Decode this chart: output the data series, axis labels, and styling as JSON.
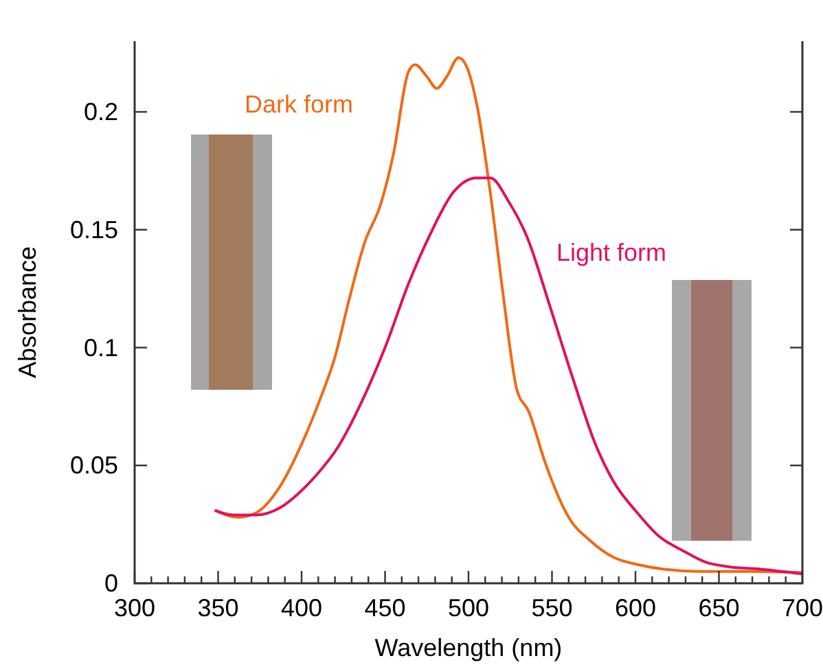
{
  "chart_data": {
    "type": "line",
    "xlabel": "Wavelength (nm)",
    "ylabel": "Absorbance",
    "xlim": [
      300,
      700
    ],
    "ylim": [
      0,
      0.23
    ],
    "xticks": [
      300,
      {
        "value": 310,
        "label": null
      },
      {
        "value": 320,
        "label": null
      },
      {
        "value": 330,
        "label": null
      },
      {
        "value": 340,
        "label": null
      },
      350,
      {
        "value": 360,
        "label": null
      },
      {
        "value": 370,
        "label": null
      },
      {
        "value": 380,
        "label": null
      },
      {
        "value": 390,
        "label": null
      },
      400,
      {
        "value": 410,
        "label": null
      },
      {
        "value": 420,
        "label": null
      },
      {
        "value": 430,
        "label": null
      },
      {
        "value": 440,
        "label": null
      },
      450,
      {
        "value": 460,
        "label": null
      },
      {
        "value": 470,
        "label": null
      },
      {
        "value": 480,
        "label": null
      },
      {
        "value": 490,
        "label": null
      },
      500,
      {
        "value": 510,
        "label": null
      },
      {
        "value": 520,
        "label": null
      },
      {
        "value": 530,
        "label": null
      },
      {
        "value": 540,
        "label": null
      },
      550,
      {
        "value": 560,
        "label": null
      },
      {
        "value": 570,
        "label": null
      },
      {
        "value": 580,
        "label": null
      },
      {
        "value": 590,
        "label": null
      },
      600,
      {
        "value": 610,
        "label": null
      },
      {
        "value": 620,
        "label": null
      },
      {
        "value": 630,
        "label": null
      },
      {
        "value": 640,
        "label": null
      },
      650,
      {
        "value": 660,
        "label": null
      },
      {
        "value": 670,
        "label": null
      },
      {
        "value": 680,
        "label": null
      },
      {
        "value": 690,
        "label": null
      },
      700
    ],
    "yticks": [
      0,
      0.05,
      0.1,
      0.15,
      0.2
    ],
    "marker": "none",
    "line_style": "solid",
    "series": [
      {
        "name": "Dark form",
        "color": "#f06a14",
        "x": [
          348,
          362,
          373,
          387,
          400,
          411,
          420,
          428,
          438,
          447,
          455,
          464,
          468,
          475,
          481,
          487,
          494,
          499,
          505,
          513,
          521,
          529,
          536,
          546,
          560,
          573,
          587,
          601,
          617,
          642,
          669,
          700
        ],
        "values": [
          0.031,
          0.028,
          0.03,
          0.041,
          0.059,
          0.078,
          0.096,
          0.119,
          0.145,
          0.16,
          0.182,
          0.217,
          0.22,
          0.215,
          0.21,
          0.215,
          0.223,
          0.219,
          0.203,
          0.166,
          0.121,
          0.082,
          0.073,
          0.051,
          0.028,
          0.018,
          0.011,
          0.008,
          0.006,
          0.005,
          0.005,
          0.0045
        ]
      },
      {
        "name": "Light form",
        "color": "#e0115f",
        "x": [
          348,
          359,
          373,
          387,
          398,
          409,
          422,
          436,
          450,
          464,
          477,
          491,
          505,
          513,
          524,
          535,
          549,
          562,
          576,
          587,
          601,
          614,
          628,
          642,
          656,
          675,
          700
        ],
        "values": [
          0.031,
          0.029,
          0.029,
          0.032,
          0.038,
          0.046,
          0.058,
          0.077,
          0.1,
          0.127,
          0.148,
          0.166,
          0.172,
          0.172,
          0.162,
          0.147,
          0.117,
          0.088,
          0.059,
          0.043,
          0.03,
          0.02,
          0.014,
          0.009,
          0.007,
          0.006,
          0.004
        ]
      }
    ]
  }
}
